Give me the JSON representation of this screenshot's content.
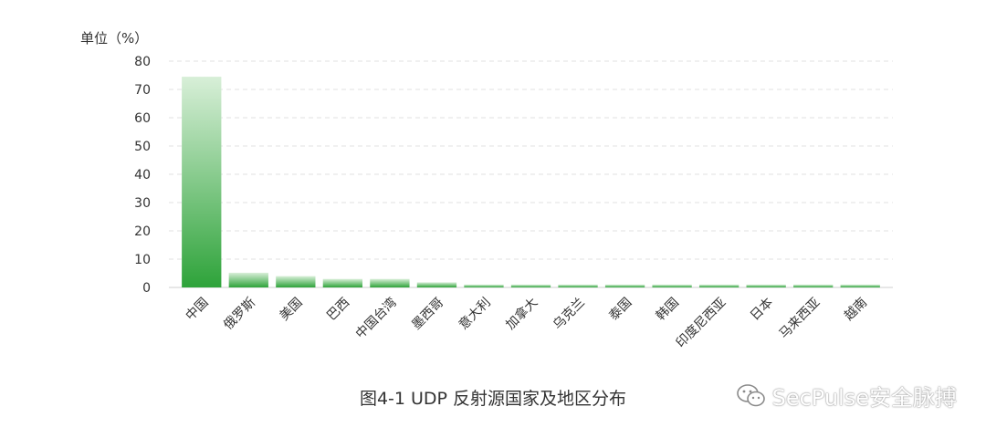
{
  "chart_data": {
    "type": "bar",
    "unit_label": "单位（%）",
    "categories": [
      "中国",
      "俄罗斯",
      "美国",
      "巴西",
      "中国台湾",
      "墨西哥",
      "意大利",
      "加拿大",
      "乌克兰",
      "泰国",
      "韩国",
      "印度尼西亚",
      "日本",
      "马来西亚",
      "越南"
    ],
    "values": [
      74.5,
      5.2,
      4.0,
      3.0,
      3.0,
      1.8,
      1.0,
      1.0,
      1.0,
      1.0,
      1.0,
      1.0,
      1.0,
      1.0,
      1.0
    ],
    "yticks": [
      0,
      10,
      20,
      30,
      40,
      50,
      60,
      70,
      80
    ],
    "ylim": [
      0,
      80
    ],
    "grid": true,
    "bar_color_top": "#d8efd8",
    "bar_color_bottom": "#2ea33a"
  },
  "caption": "图4-1  UDP 反射源国家及地区分布",
  "watermark": {
    "text": "SecPulse安全脉搏",
    "icon": "wechat-icon"
  }
}
